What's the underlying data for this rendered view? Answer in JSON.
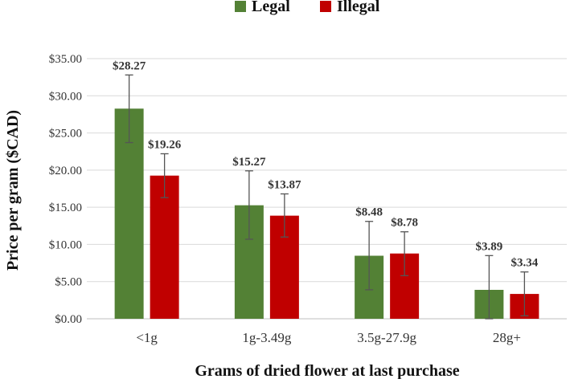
{
  "chart_data": {
    "type": "bar",
    "title": "",
    "xlabel": "Grams of dried flower at last purchase",
    "ylabel": "Price per gram ($CAD)",
    "categories": [
      "<1g",
      "1g-3.49g",
      "3.5g-27.9g",
      "28g+"
    ],
    "ylim": [
      0,
      35
    ],
    "yticks": [
      0,
      5,
      10,
      15,
      20,
      25,
      30,
      35
    ],
    "ytick_labels": [
      "$0.00",
      "$5.00",
      "$10.00",
      "$15.00",
      "$20.00",
      "$25.00",
      "$30.00",
      "$35.00"
    ],
    "grid": true,
    "legend_position": "top-center",
    "series": [
      {
        "name": "Legal",
        "color": "#538135",
        "values": [
          28.27,
          15.27,
          8.48,
          3.89
        ],
        "value_labels": [
          "$28.27",
          "$15.27",
          "$8.48",
          "$3.89"
        ],
        "error_low": [
          23.7,
          10.7,
          3.9,
          0.0
        ],
        "error_high": [
          32.8,
          19.9,
          13.1,
          8.5
        ]
      },
      {
        "name": "Illegal",
        "color": "#C00000",
        "values": [
          19.26,
          13.87,
          8.78,
          3.34
        ],
        "value_labels": [
          "$19.26",
          "$13.87",
          "$8.78",
          "$3.34"
        ],
        "error_low": [
          16.3,
          11.0,
          5.8,
          0.4
        ],
        "error_high": [
          22.2,
          16.8,
          11.7,
          6.3
        ]
      }
    ]
  }
}
